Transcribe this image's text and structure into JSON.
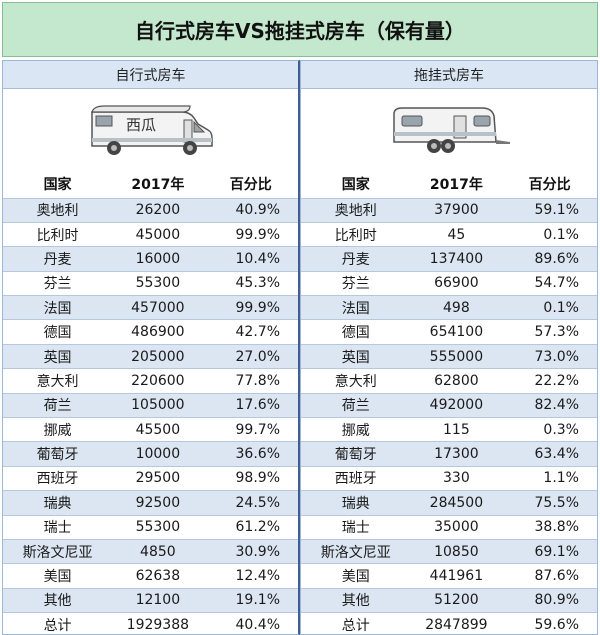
{
  "title": "自行式房车VS拖挂式房车（保有量）",
  "left": {
    "heading": "自行式房车",
    "logo_text": "西瓜",
    "columns": [
      "国家",
      "2017年",
      "百分比"
    ],
    "rows": [
      [
        "奥地利",
        "26200",
        "40.9%"
      ],
      [
        "比利时",
        "45000",
        "99.9%"
      ],
      [
        "丹麦",
        "16000",
        "10.4%"
      ],
      [
        "芬兰",
        "55300",
        "45.3%"
      ],
      [
        "法国",
        "457000",
        "99.9%"
      ],
      [
        "德国",
        "486900",
        "42.7%"
      ],
      [
        "英国",
        "205000",
        "27.0%"
      ],
      [
        "意大利",
        "220600",
        "77.8%"
      ],
      [
        "荷兰",
        "105000",
        "17.6%"
      ],
      [
        "挪威",
        "45500",
        "99.7%"
      ],
      [
        "葡萄牙",
        "10000",
        "36.6%"
      ],
      [
        "西班牙",
        "29500",
        "98.9%"
      ],
      [
        "瑞典",
        "92500",
        "24.5%"
      ],
      [
        "瑞士",
        "55300",
        "61.2%"
      ],
      [
        "斯洛文尼亚",
        "4850",
        "30.9%"
      ],
      [
        "美国",
        "62638",
        "12.4%"
      ],
      [
        "其他",
        "12100",
        "19.1%"
      ],
      [
        "总计",
        "1929388",
        "40.4%"
      ]
    ]
  },
  "right": {
    "heading": "拖挂式房车",
    "columns": [
      "国家",
      "2017年",
      "百分比"
    ],
    "rows": [
      [
        "奥地利",
        "37900",
        "59.1%"
      ],
      [
        "比利时",
        "45",
        "0.1%"
      ],
      [
        "丹麦",
        "137400",
        "89.6%"
      ],
      [
        "芬兰",
        "66900",
        "54.7%"
      ],
      [
        "法国",
        "498",
        "0.1%"
      ],
      [
        "德国",
        "654100",
        "57.3%"
      ],
      [
        "英国",
        "555000",
        "73.0%"
      ],
      [
        "意大利",
        "62800",
        "22.2%"
      ],
      [
        "荷兰",
        "492000",
        "82.4%"
      ],
      [
        "挪威",
        "115",
        "0.3%"
      ],
      [
        "葡萄牙",
        "17300",
        "63.4%"
      ],
      [
        "西班牙",
        "330",
        "1.1%"
      ],
      [
        "瑞典",
        "284500",
        "75.5%"
      ],
      [
        "瑞士",
        "35000",
        "38.8%"
      ],
      [
        "斯洛文尼亚",
        "10850",
        "69.1%"
      ],
      [
        "美国",
        "441961",
        "87.6%"
      ],
      [
        "其他",
        "51200",
        "80.9%"
      ],
      [
        "总计",
        "2847899",
        "59.6%"
      ]
    ]
  },
  "colors": {
    "title_bg": "#c4e8cd",
    "header_bg": "#dbe6f4",
    "shaded_row": "#dce6f2",
    "divider": "#3f5f94"
  }
}
